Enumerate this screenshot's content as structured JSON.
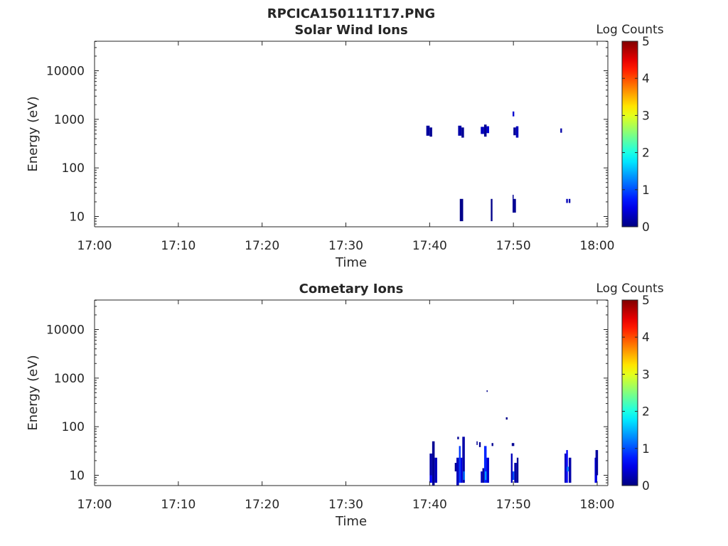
{
  "figure": {
    "title": "RPCICA150111T17.PNG"
  },
  "chart_data": [
    {
      "type": "heatmap",
      "title": "Solar Wind Ions",
      "xlabel": "Time",
      "ylabel": "Energy (eV)",
      "x_ticks": [
        "17:00",
        "17:10",
        "17:20",
        "17:30",
        "17:40",
        "17:50",
        "18:00"
      ],
      "x_range_minutes": [
        0,
        60
      ],
      "y_scale": "log",
      "y_ticks": [
        "10",
        "100",
        "1000",
        "10000"
      ],
      "y_range": [
        6,
        45000
      ],
      "colorbar": {
        "label": "Log Counts",
        "ticks": [
          "0",
          "1",
          "2",
          "3",
          "4",
          "5"
        ],
        "range": [
          0,
          5
        ],
        "colormap": "jet"
      },
      "cells": [
        {
          "t0": 39.6,
          "t1": 40.0,
          "e_low": 460,
          "e_high": 740,
          "v": 0.15
        },
        {
          "t0": 40.0,
          "t1": 40.3,
          "e_low": 440,
          "e_high": 680,
          "v": 0.1
        },
        {
          "t0": 43.4,
          "t1": 43.8,
          "e_low": 460,
          "e_high": 740,
          "v": 0.2
        },
        {
          "t0": 43.8,
          "t1": 44.1,
          "e_low": 420,
          "e_high": 680,
          "v": 0.1
        },
        {
          "t0": 46.1,
          "t1": 46.5,
          "e_low": 500,
          "e_high": 700,
          "v": 0.3
        },
        {
          "t0": 46.5,
          "t1": 46.8,
          "e_low": 440,
          "e_high": 780,
          "v": 0.1
        },
        {
          "t0": 46.8,
          "t1": 47.1,
          "e_low": 520,
          "e_high": 720,
          "v": 0.4
        },
        {
          "t0": 50.0,
          "t1": 50.3,
          "e_low": 470,
          "e_high": 680,
          "v": 0.1
        },
        {
          "t0": 50.3,
          "t1": 50.6,
          "e_low": 420,
          "e_high": 720,
          "v": 0.3
        },
        {
          "t0": 49.9,
          "t1": 50.1,
          "e_low": 1150,
          "e_high": 1450,
          "v": 0.4
        },
        {
          "t0": 55.6,
          "t1": 55.8,
          "e_low": 530,
          "e_high": 650,
          "v": 0.2
        },
        {
          "t0": 43.6,
          "t1": 44.0,
          "e_low": 8,
          "e_high": 23,
          "v": 0.05
        },
        {
          "t0": 47.3,
          "t1": 47.5,
          "e_low": 8,
          "e_high": 23,
          "v": 0.05
        },
        {
          "t0": 49.9,
          "t1": 50.3,
          "e_low": 12,
          "e_high": 23,
          "v": 0.1
        },
        {
          "t0": 49.9,
          "t1": 50.0,
          "e_low": 23,
          "e_high": 28,
          "v": 0.1
        },
        {
          "t0": 56.3,
          "t1": 56.5,
          "e_low": 19,
          "e_high": 23,
          "v": 0.3
        },
        {
          "t0": 56.6,
          "t1": 56.8,
          "e_low": 19,
          "e_high": 23,
          "v": 0.2
        }
      ]
    },
    {
      "type": "heatmap",
      "title": "Cometary Ions",
      "xlabel": "Time",
      "ylabel": "Energy (eV)",
      "x_ticks": [
        "17:00",
        "17:10",
        "17:20",
        "17:30",
        "17:40",
        "17:50",
        "18:00"
      ],
      "x_range_minutes": [
        0,
        60
      ],
      "y_scale": "log",
      "y_ticks": [
        "10",
        "100",
        "1000",
        "10000"
      ],
      "y_range": [
        6,
        45000
      ],
      "colorbar": {
        "label": "Log Counts",
        "ticks": [
          "0",
          "1",
          "2",
          "3",
          "4",
          "5"
        ],
        "range": [
          0,
          5
        ],
        "colormap": "jet"
      },
      "cells": [
        {
          "t0": 40.0,
          "t1": 40.3,
          "e_low": 10,
          "e_high": 28,
          "v": 0.2
        },
        {
          "t0": 40.0,
          "t1": 40.3,
          "e_low": 7,
          "e_high": 10,
          "v": 0.6
        },
        {
          "t0": 40.3,
          "t1": 40.6,
          "e_low": 6,
          "e_high": 50,
          "v": 0.1
        },
        {
          "t0": 40.6,
          "t1": 40.9,
          "e_low": 7,
          "e_high": 23,
          "v": 0.3
        },
        {
          "t0": 43.0,
          "t1": 43.2,
          "e_low": 12,
          "e_high": 18,
          "v": 0.1
        },
        {
          "t0": 43.2,
          "t1": 43.5,
          "e_low": 6,
          "e_high": 23,
          "v": 0.3
        },
        {
          "t0": 43.3,
          "t1": 43.5,
          "e_low": 55,
          "e_high": 62,
          "v": 0.1
        },
        {
          "t0": 43.5,
          "t1": 43.7,
          "e_low": 7,
          "e_high": 40,
          "v": 0.9
        },
        {
          "t0": 43.7,
          "t1": 43.9,
          "e_low": 7,
          "e_high": 23,
          "v": 0.5
        },
        {
          "t0": 43.9,
          "t1": 44.2,
          "e_low": 7,
          "e_high": 62,
          "v": 0.2
        },
        {
          "t0": 44.0,
          "t1": 44.2,
          "e_low": 8,
          "e_high": 12,
          "v": 1.2
        },
        {
          "t0": 45.6,
          "t1": 45.7,
          "e_low": 42,
          "e_high": 50,
          "v": 0.1
        },
        {
          "t0": 45.9,
          "t1": 46.1,
          "e_low": 38,
          "e_high": 48,
          "v": 0.1
        },
        {
          "t0": 46.1,
          "t1": 46.3,
          "e_low": 7,
          "e_high": 12,
          "v": 0.3
        },
        {
          "t0": 46.3,
          "t1": 46.5,
          "e_low": 7,
          "e_high": 14,
          "v": 0.1
        },
        {
          "t0": 46.5,
          "t1": 46.8,
          "e_low": 7,
          "e_high": 40,
          "v": 0.8
        },
        {
          "t0": 46.6,
          "t1": 46.8,
          "e_low": 8,
          "e_high": 12,
          "v": 1.4
        },
        {
          "t0": 46.8,
          "t1": 47.1,
          "e_low": 7,
          "e_high": 23,
          "v": 0.4
        },
        {
          "t0": 46.8,
          "t1": 46.9,
          "e_low": 520,
          "e_high": 560,
          "v": 0.05
        },
        {
          "t0": 47.4,
          "t1": 47.6,
          "e_low": 40,
          "e_high": 46,
          "v": 0.1
        },
        {
          "t0": 49.1,
          "t1": 49.3,
          "e_low": 140,
          "e_high": 156,
          "v": 0.05
        },
        {
          "t0": 49.7,
          "t1": 49.9,
          "e_low": 7,
          "e_high": 28,
          "v": 0.3
        },
        {
          "t0": 49.8,
          "t1": 50.1,
          "e_low": 40,
          "e_high": 46,
          "v": 0.1
        },
        {
          "t0": 49.9,
          "t1": 50.1,
          "e_low": 8,
          "e_high": 12,
          "v": 1.0
        },
        {
          "t0": 50.1,
          "t1": 50.4,
          "e_low": 7,
          "e_high": 18,
          "v": 0.2
        },
        {
          "t0": 50.4,
          "t1": 50.6,
          "e_low": 7,
          "e_high": 23,
          "v": 0.1
        },
        {
          "t0": 56.1,
          "t1": 56.3,
          "e_low": 7,
          "e_high": 28,
          "v": 0.3
        },
        {
          "t0": 56.3,
          "t1": 56.5,
          "e_low": 7,
          "e_high": 33,
          "v": 0.6
        },
        {
          "t0": 56.4,
          "t1": 56.6,
          "e_low": 12,
          "e_high": 15,
          "v": 1.3
        },
        {
          "t0": 56.6,
          "t1": 56.9,
          "e_low": 7,
          "e_high": 23,
          "v": 0.2
        },
        {
          "t0": 59.7,
          "t1": 60.0,
          "e_low": 7,
          "e_high": 23,
          "v": 0.5
        },
        {
          "t0": 59.8,
          "t1": 60.1,
          "e_low": 10,
          "e_high": 33,
          "v": 0.15
        }
      ]
    }
  ]
}
